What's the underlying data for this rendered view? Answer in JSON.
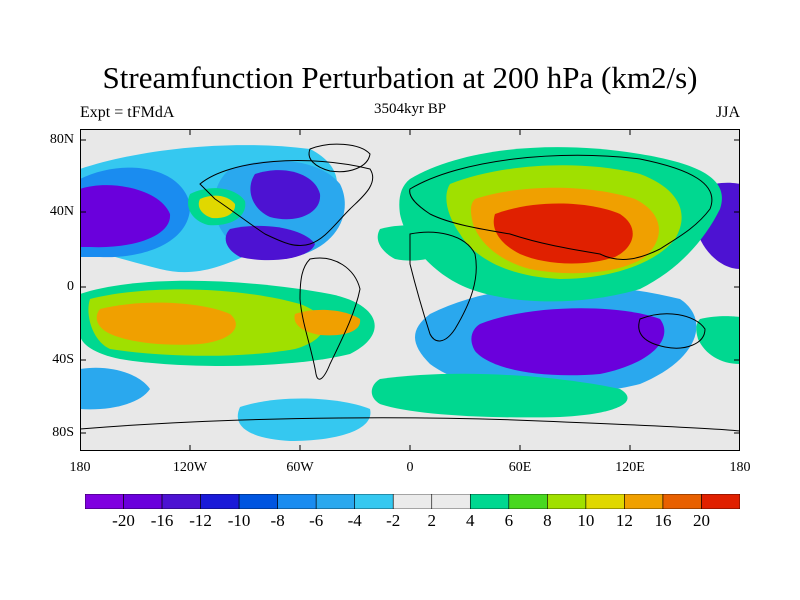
{
  "title": "Streamfunction Perturbation at 200 hPa (km2/s)",
  "left_label": "Expt = tFMdA",
  "center_label": "3504kyr BP",
  "right_label": "JJA",
  "axes": {
    "lat_labels": [
      "80N",
      "40N",
      "0",
      "40S",
      "80S"
    ],
    "lon_labels": [
      "180",
      "120W",
      "60W",
      "0",
      "60E",
      "120E",
      "180"
    ]
  },
  "colors": {
    "bg": "#e8e8e8",
    "levels": [
      "#8000e0",
      "#6a00dc",
      "#4d12d2",
      "#1a1ad8",
      "#0055e0",
      "#1a8cf0",
      "#2aa8ee",
      "#35c8f0",
      "#ebebeb",
      "#00d890",
      "#48d820",
      "#a0e000",
      "#e0d800",
      "#f0a000",
      "#e86000",
      "#e02000"
    ]
  },
  "colorbar": {
    "labels": [
      "-20",
      "-16",
      "-12",
      "-10",
      "-8",
      "-6",
      "-4",
      "-2",
      "2",
      "4",
      "6",
      "8",
      "10",
      "12",
      "16",
      "20"
    ]
  },
  "chart_data": {
    "type": "heatmap",
    "variable": "Streamfunction Perturbation at 200 hPa",
    "units": "km2/s",
    "level_bounds": [
      -20,
      -16,
      -12,
      -10,
      -8,
      -6,
      -4,
      -2,
      2,
      4,
      6,
      8,
      10,
      12,
      16,
      20
    ],
    "xlim": [
      -180,
      180
    ],
    "ylim": [
      -90,
      90
    ]
  }
}
